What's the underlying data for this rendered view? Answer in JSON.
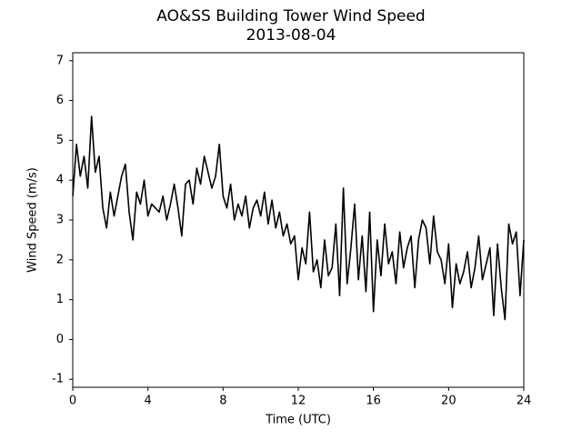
{
  "chart_data": {
    "type": "line",
    "title": "AO&SS Building Tower Wind Speed",
    "subtitle": "2013-08-04",
    "x_label": "Time (UTC)",
    "y_label": "Wind Speed (m/s)",
    "xlim": [
      0,
      24
    ],
    "xticks": [
      0,
      4,
      8,
      12,
      16,
      20,
      24
    ],
    "ylim": [
      -1.2,
      7.2
    ],
    "yticks": [
      -1,
      0,
      1,
      2,
      3,
      4,
      5,
      6,
      7
    ],
    "grid": false,
    "series": [
      {
        "color": "#000000",
        "x": [
          0,
          0.2,
          0.4,
          0.6,
          0.8,
          1,
          1.2,
          1.4,
          1.6,
          1.8,
          2,
          2.2,
          2.4,
          2.6,
          2.8,
          3,
          3.2,
          3.4,
          3.6,
          3.8,
          4,
          4.2,
          4.4,
          4.6,
          4.8,
          5,
          5.2,
          5.4,
          5.6,
          5.8,
          6,
          6.2,
          6.4,
          6.6,
          6.8,
          7,
          7.2,
          7.4,
          7.6,
          7.8,
          8,
          8.2,
          8.4,
          8.6,
          8.8,
          9,
          9.2,
          9.4,
          9.6,
          9.8,
          10,
          10.2,
          10.4,
          10.6,
          10.8,
          11,
          11.2,
          11.4,
          11.6,
          11.8,
          12,
          12.2,
          12.4,
          12.6,
          12.8,
          13,
          13.2,
          13.4,
          13.6,
          13.8,
          14,
          14.2,
          14.4,
          14.6,
          14.8,
          15,
          15.2,
          15.4,
          15.6,
          15.8,
          16,
          16.2,
          16.4,
          16.6,
          16.8,
          17,
          17.2,
          17.4,
          17.6,
          17.8,
          18,
          18.2,
          18.4,
          18.6,
          18.8,
          19,
          19.2,
          19.4,
          19.6,
          19.8,
          20,
          20.2,
          20.4,
          20.6,
          20.8,
          21,
          21.2,
          21.4,
          21.6,
          21.8,
          22,
          22.2,
          22.4,
          22.6,
          22.8,
          23,
          23.2,
          23.4,
          23.6,
          23.8,
          24
        ],
        "values": [
          3.6,
          4.9,
          4.1,
          4.6,
          3.8,
          5.6,
          4.2,
          4.6,
          3.3,
          2.8,
          3.7,
          3.1,
          3.6,
          4.1,
          4.4,
          3.2,
          2.5,
          3.7,
          3.4,
          4.0,
          3.1,
          3.4,
          3.3,
          3.2,
          3.6,
          3.0,
          3.4,
          3.9,
          3.3,
          2.6,
          3.9,
          4.0,
          3.4,
          4.3,
          3.9,
          4.6,
          4.2,
          3.8,
          4.1,
          4.9,
          3.6,
          3.3,
          3.9,
          3.0,
          3.4,
          3.1,
          3.6,
          2.8,
          3.3,
          3.5,
          3.1,
          3.7,
          2.9,
          3.5,
          2.8,
          3.2,
          2.6,
          2.9,
          2.4,
          2.6,
          1.5,
          2.3,
          1.9,
          3.2,
          1.7,
          2.0,
          1.3,
          2.5,
          1.6,
          1.8,
          2.9,
          1.1,
          3.8,
          1.4,
          2.3,
          3.4,
          1.5,
          2.6,
          1.2,
          3.2,
          0.7,
          2.5,
          1.6,
          2.9,
          1.9,
          2.2,
          1.4,
          2.7,
          1.8,
          2.3,
          2.6,
          1.3,
          2.5,
          3.0,
          2.8,
          1.9,
          3.1,
          2.2,
          2.0,
          1.4,
          2.4,
          0.8,
          1.9,
          1.4,
          1.7,
          2.2,
          1.3,
          1.8,
          2.6,
          1.5,
          1.9,
          2.3,
          0.6,
          2.4,
          1.3,
          0.5,
          2.9,
          2.4,
          2.7,
          1.1,
          2.5
        ]
      }
    ]
  }
}
